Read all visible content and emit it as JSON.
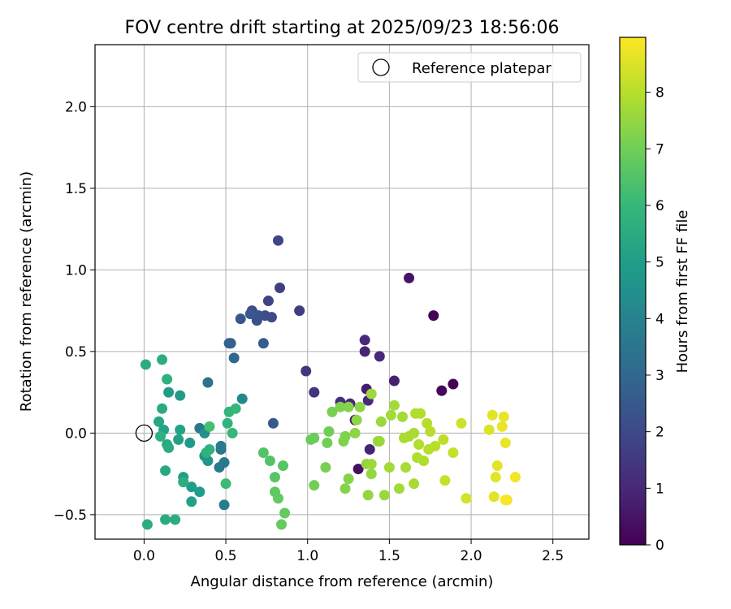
{
  "chart_data": {
    "type": "scatter",
    "title": "FOV centre drift starting at 2025/09/23 18:56:06",
    "xlabel": "Angular distance from reference (arcmin)",
    "ylabel": "Rotation from reference (arcmin)",
    "xlim": [
      -0.3,
      2.72
    ],
    "ylim": [
      -0.65,
      2.38
    ],
    "grid": true,
    "xticks": [
      0.0,
      0.5,
      1.0,
      1.5,
      2.0,
      2.5
    ],
    "xtick_labels": [
      "0.0",
      "0.5",
      "1.0",
      "1.5",
      "2.0",
      "2.5"
    ],
    "yticks": [
      -0.5,
      0.0,
      0.5,
      1.0,
      1.5,
      2.0
    ],
    "ytick_labels": [
      "−0.5",
      "0.0",
      "0.5",
      "1.0",
      "1.5",
      "2.0"
    ],
    "legend": {
      "placement": "upper right",
      "entries": [
        {
          "label": "Reference platepar",
          "marker": "open-circle"
        }
      ]
    },
    "reference_point": {
      "x": 0.0,
      "y": 0.0,
      "label": "Reference platepar"
    },
    "colorbar": {
      "label": "Hours from first FF file",
      "colormap": "viridis",
      "range": [
        0,
        8.97
      ],
      "ticks": [
        0,
        1,
        2,
        3,
        4,
        5,
        6,
        7,
        8
      ],
      "tick_labels": [
        "0",
        "1",
        "2",
        "3",
        "4",
        "5",
        "6",
        "7",
        "8"
      ]
    },
    "colormap_stops": [
      "#440154",
      "#482878",
      "#3e4989",
      "#31688e",
      "#26828e",
      "#1f9e89",
      "#35b779",
      "#6ece58",
      "#b5de2b",
      "#fde725"
    ],
    "series": [
      {
        "name": "FOV centre",
        "points": [
          [
            1.89,
            0.3,
            0.05
          ],
          [
            1.82,
            0.26,
            0.15
          ],
          [
            1.77,
            0.72,
            0.1
          ],
          [
            1.31,
            -0.22,
            0.35
          ],
          [
            1.62,
            0.95,
            0.45
          ],
          [
            1.53,
            0.32,
            0.8
          ],
          [
            1.29,
            0.08,
            0.6
          ],
          [
            1.36,
            0.27,
            0.7
          ],
          [
            1.38,
            -0.1,
            0.9
          ],
          [
            1.35,
            0.5,
            0.9
          ],
          [
            1.35,
            0.57,
            1.0
          ],
          [
            1.44,
            0.47,
            1.0
          ],
          [
            1.2,
            0.19,
            1.2
          ],
          [
            1.26,
            0.18,
            1.1
          ],
          [
            1.37,
            0.2,
            1.1
          ],
          [
            1.04,
            0.25,
            1.3
          ],
          [
            0.99,
            0.38,
            1.4
          ],
          [
            0.95,
            0.75,
            1.6
          ],
          [
            0.83,
            0.89,
            1.7
          ],
          [
            0.82,
            1.18,
            1.9
          ],
          [
            0.76,
            0.81,
            1.8
          ],
          [
            0.78,
            0.71,
            2.0
          ],
          [
            0.66,
            0.75,
            2.0
          ],
          [
            0.74,
            0.72,
            2.1
          ],
          [
            0.69,
            0.69,
            2.2
          ],
          [
            0.7,
            0.72,
            2.3
          ],
          [
            0.65,
            0.73,
            2.5
          ],
          [
            0.59,
            0.7,
            2.4
          ],
          [
            0.73,
            0.55,
            2.6
          ],
          [
            0.53,
            0.55,
            2.7
          ],
          [
            0.52,
            0.55,
            2.8
          ],
          [
            0.55,
            0.46,
            3.0
          ],
          [
            0.79,
            0.06,
            2.5
          ],
          [
            0.39,
            0.31,
            3.4
          ],
          [
            0.47,
            -0.1,
            3.3
          ],
          [
            0.34,
            0.03,
            3.6
          ],
          [
            0.49,
            -0.18,
            3.6
          ],
          [
            0.46,
            -0.21,
            3.6
          ],
          [
            0.47,
            -0.08,
            3.7
          ],
          [
            0.49,
            -0.44,
            3.7
          ],
          [
            0.6,
            0.21,
            4.2
          ],
          [
            0.37,
            0.0,
            4.4
          ],
          [
            0.37,
            -0.14,
            4.6
          ],
          [
            0.39,
            -0.17,
            4.7
          ],
          [
            0.28,
            -0.06,
            4.8
          ],
          [
            0.22,
            0.23,
            4.9
          ],
          [
            0.15,
            0.25,
            4.9
          ],
          [
            0.24,
            -0.27,
            5.0
          ],
          [
            0.29,
            -0.33,
            5.0
          ],
          [
            0.34,
            -0.36,
            5.0
          ],
          [
            0.29,
            -0.42,
            5.1
          ],
          [
            0.21,
            -0.04,
            5.1
          ],
          [
            0.22,
            0.02,
            5.2
          ],
          [
            0.12,
            0.02,
            5.2
          ],
          [
            0.09,
            0.07,
            5.3
          ],
          [
            0.14,
            -0.07,
            5.4
          ],
          [
            0.15,
            -0.09,
            5.5
          ],
          [
            0.11,
            0.15,
            5.5
          ],
          [
            0.13,
            -0.23,
            5.4
          ],
          [
            0.13,
            -0.53,
            5.5
          ],
          [
            0.19,
            -0.53,
            5.6
          ],
          [
            0.02,
            -0.56,
            5.6
          ],
          [
            0.11,
            0.45,
            5.6
          ],
          [
            0.01,
            0.42,
            5.6
          ],
          [
            0.14,
            0.33,
            5.7
          ],
          [
            0.1,
            -0.02,
            5.7
          ],
          [
            0.24,
            -0.3,
            5.6
          ],
          [
            0.38,
            -0.12,
            5.7
          ],
          [
            0.4,
            -0.1,
            5.8
          ],
          [
            0.51,
            0.06,
            5.8
          ],
          [
            0.52,
            0.13,
            5.9
          ],
          [
            0.56,
            0.15,
            6.0
          ],
          [
            0.54,
            0.0,
            6.0
          ],
          [
            0.5,
            -0.31,
            6.1
          ],
          [
            0.4,
            0.04,
            6.3
          ],
          [
            0.73,
            -0.12,
            6.5
          ],
          [
            0.77,
            -0.17,
            6.5
          ],
          [
            0.8,
            -0.27,
            6.6
          ],
          [
            0.85,
            -0.2,
            6.6
          ],
          [
            0.8,
            -0.36,
            6.7
          ],
          [
            0.82,
            -0.4,
            6.8
          ],
          [
            0.86,
            -0.49,
            6.8
          ],
          [
            0.84,
            -0.56,
            6.8
          ],
          [
            1.02,
            -0.04,
            6.9
          ],
          [
            1.04,
            -0.03,
            6.9
          ],
          [
            1.04,
            -0.32,
            7.0
          ],
          [
            1.12,
            -0.06,
            7.0
          ],
          [
            1.13,
            0.01,
            7.0
          ],
          [
            1.11,
            -0.21,
            7.1
          ],
          [
            1.15,
            0.13,
            7.1
          ],
          [
            1.2,
            0.16,
            7.2
          ],
          [
            1.22,
            -0.05,
            7.2
          ],
          [
            1.23,
            -0.02,
            7.2
          ],
          [
            1.23,
            -0.34,
            7.3
          ],
          [
            1.25,
            0.16,
            7.3
          ],
          [
            1.25,
            -0.28,
            7.3
          ],
          [
            1.3,
            0.08,
            7.4
          ],
          [
            1.29,
            0.0,
            7.4
          ],
          [
            1.32,
            0.16,
            7.4
          ],
          [
            1.36,
            -0.19,
            7.5
          ],
          [
            1.37,
            -0.38,
            7.5
          ],
          [
            1.39,
            -0.25,
            7.5
          ],
          [
            1.39,
            -0.19,
            7.6
          ],
          [
            1.39,
            0.24,
            7.6
          ],
          [
            1.43,
            -0.05,
            7.6
          ],
          [
            1.44,
            -0.05,
            7.6
          ],
          [
            1.45,
            0.07,
            7.6
          ],
          [
            1.47,
            -0.38,
            7.6
          ],
          [
            1.5,
            -0.21,
            7.7
          ],
          [
            1.51,
            0.11,
            7.7
          ],
          [
            1.53,
            0.17,
            7.7
          ],
          [
            1.56,
            -0.34,
            7.7
          ],
          [
            1.58,
            0.1,
            7.7
          ],
          [
            1.59,
            -0.03,
            7.8
          ],
          [
            1.6,
            -0.21,
            7.8
          ],
          [
            1.62,
            -0.02,
            7.8
          ],
          [
            1.65,
            0.0,
            7.8
          ],
          [
            1.65,
            -0.31,
            7.8
          ],
          [
            1.66,
            0.12,
            7.9
          ],
          [
            1.67,
            -0.15,
            7.9
          ],
          [
            1.68,
            -0.07,
            7.9
          ],
          [
            1.69,
            0.12,
            7.9
          ],
          [
            1.71,
            -0.17,
            7.9
          ],
          [
            1.73,
            0.06,
            8.0
          ],
          [
            1.74,
            -0.1,
            8.0
          ],
          [
            1.75,
            0.01,
            8.0
          ],
          [
            1.78,
            -0.08,
            8.0
          ],
          [
            1.83,
            -0.04,
            8.1
          ],
          [
            1.84,
            -0.29,
            8.2
          ],
          [
            1.89,
            -0.12,
            8.2
          ],
          [
            1.94,
            0.06,
            8.3
          ],
          [
            1.97,
            -0.4,
            8.4
          ],
          [
            2.11,
            0.02,
            8.5
          ],
          [
            2.13,
            0.11,
            8.6
          ],
          [
            2.14,
            -0.39,
            8.6
          ],
          [
            2.15,
            -0.27,
            8.6
          ],
          [
            2.16,
            -0.2,
            8.6
          ],
          [
            2.19,
            0.04,
            8.7
          ],
          [
            2.2,
            0.1,
            8.7
          ],
          [
            2.21,
            -0.06,
            8.7
          ],
          [
            2.22,
            -0.41,
            8.8
          ],
          [
            2.27,
            -0.27,
            8.8
          ],
          [
            2.21,
            -0.41,
            8.9
          ]
        ]
      }
    ]
  }
}
